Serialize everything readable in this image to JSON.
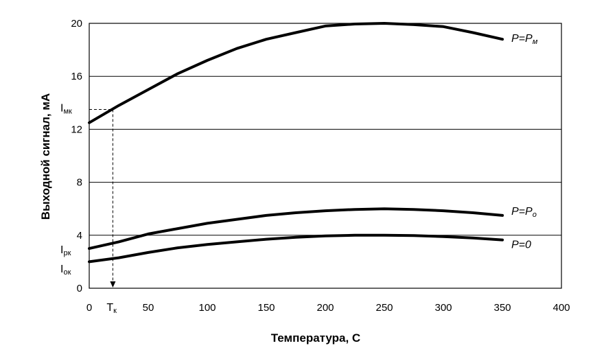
{
  "chart_data": {
    "type": "line",
    "xlabel": "Температура, С",
    "ylabel": "Выходной сигнал, мА",
    "xlim": [
      0,
      400
    ],
    "ylim": [
      0,
      20
    ],
    "x_ticks": [
      0,
      50,
      100,
      150,
      200,
      250,
      300,
      350,
      400
    ],
    "y_ticks": [
      0,
      4,
      8,
      12,
      16,
      20
    ],
    "grid": "horizontal",
    "series": [
      {
        "name": "P=P_м",
        "label_main": "P=P",
        "label_sub": "м",
        "x": [
          0,
          25,
          50,
          75,
          100,
          125,
          150,
          175,
          200,
          225,
          250,
          275,
          300,
          325,
          350
        ],
        "y": [
          12.5,
          13.8,
          15.0,
          16.2,
          17.2,
          18.1,
          18.8,
          19.3,
          19.8,
          19.95,
          20.0,
          19.9,
          19.75,
          19.3,
          18.8
        ]
      },
      {
        "name": "P=P_o",
        "label_main": "P=P",
        "label_sub": "o",
        "x": [
          0,
          25,
          50,
          75,
          100,
          125,
          150,
          175,
          200,
          225,
          250,
          275,
          300,
          325,
          350
        ],
        "y": [
          3.0,
          3.5,
          4.1,
          4.5,
          4.9,
          5.2,
          5.5,
          5.7,
          5.85,
          5.95,
          6.0,
          5.95,
          5.85,
          5.7,
          5.5
        ]
      },
      {
        "name": "P=0",
        "label_main": "P=0",
        "label_sub": "",
        "x": [
          0,
          25,
          50,
          75,
          100,
          125,
          150,
          175,
          200,
          225,
          250,
          275,
          300,
          325,
          350
        ],
        "y": [
          2.0,
          2.3,
          2.7,
          3.05,
          3.3,
          3.5,
          3.7,
          3.85,
          3.95,
          4.0,
          4.0,
          3.98,
          3.9,
          3.8,
          3.65
        ]
      }
    ],
    "annotations": {
      "Tk": {
        "main": "T",
        "sub": "к",
        "x": 20
      },
      "Imk": {
        "main": "I",
        "sub": "мк",
        "y": 13.5
      },
      "Irk": {
        "main": "I",
        "sub": "рк"
      },
      "Iok": {
        "main": "I",
        "sub": "ок"
      }
    }
  }
}
